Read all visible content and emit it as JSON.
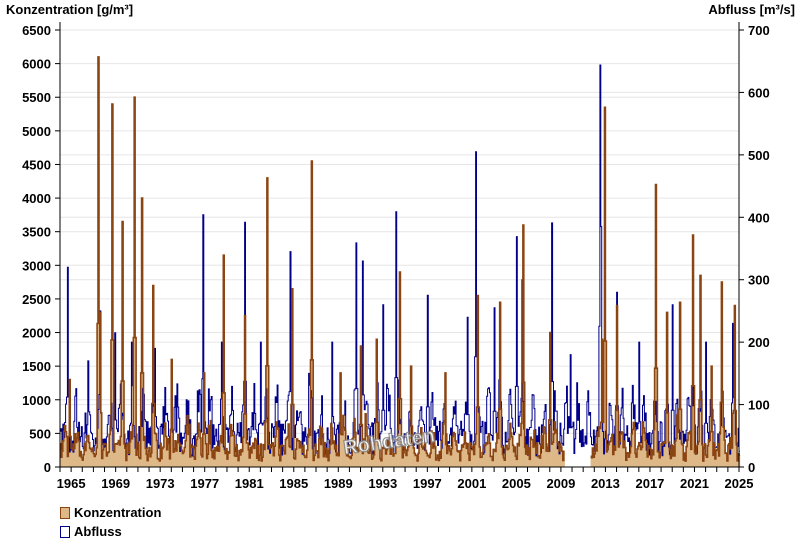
{
  "chart_data": {
    "type": "line",
    "left_axis_title": "Konzentration [g/m³]",
    "right_axis_title": "Abfluss [m³/s]",
    "left_ylim": [
      0,
      6500
    ],
    "left_yticks": [
      0,
      500,
      1000,
      1500,
      2000,
      2500,
      3000,
      3500,
      4000,
      4500,
      5000,
      5500,
      6000,
      6500
    ],
    "right_ylim": [
      0,
      700
    ],
    "right_yticks": [
      0,
      100,
      200,
      300,
      400,
      500,
      600,
      700
    ],
    "xlim": [
      1964.0,
      2025.0
    ],
    "xticks": [
      1965,
      1969,
      1973,
      1977,
      1981,
      1985,
      1989,
      1993,
      1997,
      2001,
      2005,
      2009,
      2013,
      2017,
      2021,
      2025
    ],
    "grid": true,
    "watermark": "Rohdaten",
    "concentration_gap": [
      2009.3,
      2011.6
    ],
    "series": [
      {
        "name": "Konzentration",
        "axis": "left",
        "style": "filled-step",
        "color": "#8b4513",
        "fill": "#deb887",
        "baseline": {
          "mean": 350,
          "amplitude": 300
        },
        "peaks": [
          [
            1964.8,
            1300
          ],
          [
            1967.4,
            6100
          ],
          [
            1967.6,
            2300
          ],
          [
            1968.7,
            5400
          ],
          [
            1969.6,
            3650
          ],
          [
            1970.7,
            5500
          ],
          [
            1971.3,
            4000
          ],
          [
            1972.3,
            2700
          ],
          [
            1974.0,
            1600
          ],
          [
            1976.9,
            1400
          ],
          [
            1978.7,
            3150
          ],
          [
            1980.6,
            2250
          ],
          [
            1982.6,
            4300
          ],
          [
            1984.8,
            2650
          ],
          [
            1986.6,
            4550
          ],
          [
            1989.2,
            1400
          ],
          [
            1991.0,
            1800
          ],
          [
            1992.4,
            1900
          ],
          [
            1994.5,
            2900
          ],
          [
            1995.5,
            1500
          ],
          [
            1998.6,
            1400
          ],
          [
            2001.5,
            2550
          ],
          [
            2003.5,
            2450
          ],
          [
            2005.6,
            3600
          ],
          [
            2008.0,
            2000
          ],
          [
            2012.7,
            1900
          ],
          [
            2012.9,
            5350
          ],
          [
            2014.0,
            2400
          ],
          [
            2017.5,
            4200
          ],
          [
            2018.5,
            2300
          ],
          [
            2019.7,
            2450
          ],
          [
            2020.8,
            3450
          ],
          [
            2021.5,
            2850
          ],
          [
            2022.5,
            1500
          ],
          [
            2023.4,
            2750
          ],
          [
            2024.6,
            2400
          ]
        ]
      },
      {
        "name": "Abfluss",
        "axis": "right",
        "style": "step-line",
        "color": "#00008b",
        "baseline": {
          "mean": 70,
          "amplitude": 55
        },
        "peaks": [
          [
            1964.7,
            320
          ],
          [
            1966.5,
            170
          ],
          [
            1967.6,
            250
          ],
          [
            1968.9,
            215
          ],
          [
            1970.4,
            200
          ],
          [
            1972.5,
            190
          ],
          [
            1974.0,
            150
          ],
          [
            1976.8,
            404
          ],
          [
            1978.5,
            200
          ],
          [
            1980.6,
            392
          ],
          [
            1982.0,
            200
          ],
          [
            1984.7,
            345
          ],
          [
            1986.3,
            150
          ],
          [
            1988.4,
            200
          ],
          [
            1990.6,
            359
          ],
          [
            1991.2,
            330
          ],
          [
            1993.0,
            260
          ],
          [
            1994.2,
            409
          ],
          [
            1997.0,
            275
          ],
          [
            2000.6,
            240
          ],
          [
            2001.3,
            505
          ],
          [
            2003.0,
            255
          ],
          [
            2005.0,
            369
          ],
          [
            2005.5,
            300
          ],
          [
            2008.2,
            391
          ],
          [
            2009.8,
            180
          ],
          [
            2012.5,
            644
          ],
          [
            2012.6,
            385
          ],
          [
            2014.0,
            280
          ],
          [
            2016.0,
            200
          ],
          [
            2019.0,
            260
          ],
          [
            2020.8,
            280
          ],
          [
            2022.0,
            200
          ],
          [
            2024.4,
            230
          ]
        ]
      }
    ]
  },
  "legend": {
    "items": [
      {
        "label": "Konzentration",
        "swatch_fill": "#deb887",
        "swatch_border": "#8b4513"
      },
      {
        "label": "Abfluss",
        "swatch_fill": "#ffffff",
        "swatch_border": "#00008b"
      }
    ]
  }
}
